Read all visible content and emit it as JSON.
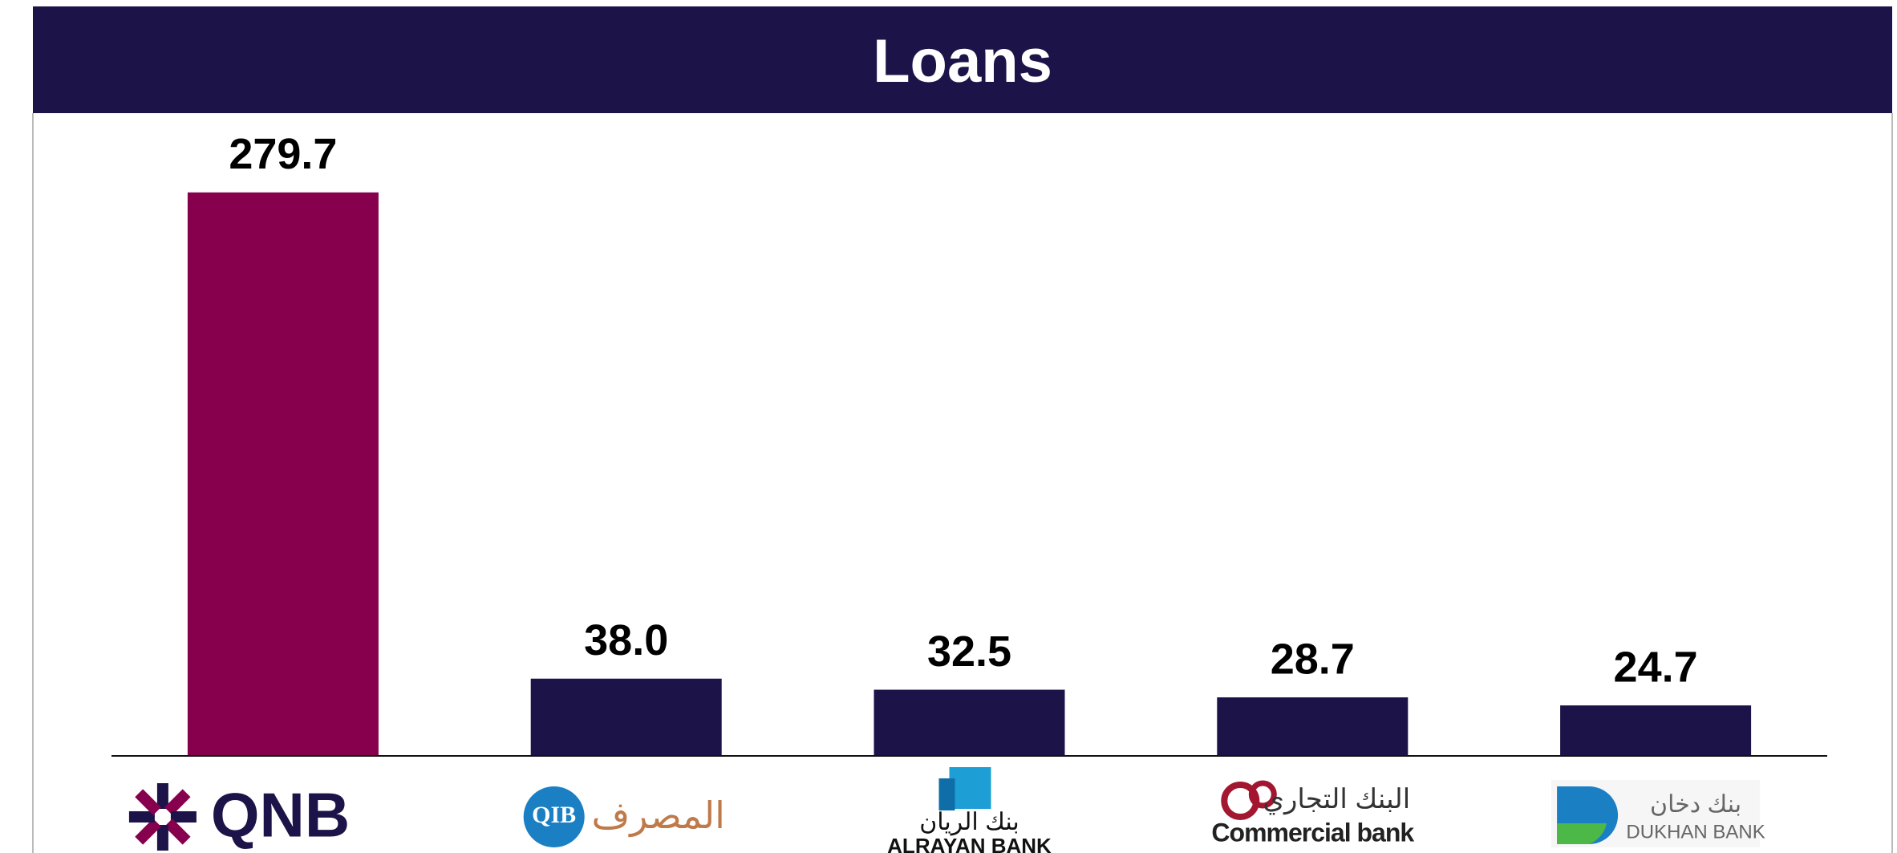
{
  "chart_data": {
    "type": "bar",
    "title": "Loans",
    "categories": [
      "QNB",
      "QIB",
      "ALRAYAN BANK",
      "Commercial bank",
      "DUKHAN BANK"
    ],
    "logo_arabic": [
      null,
      "المصرف",
      "بنك الريان",
      "البنك التجاري",
      "بنك دخان"
    ],
    "values": [
      279.7,
      38.0,
      32.5,
      28.7,
      24.7
    ],
    "value_labels": [
      "279.7",
      "38.0",
      "32.5",
      "28.7",
      "24.7"
    ],
    "colors": [
      "#87004e",
      "#1c1449",
      "#1c1449",
      "#1c1449",
      "#1c1449"
    ],
    "ylim": [
      0,
      280
    ]
  }
}
